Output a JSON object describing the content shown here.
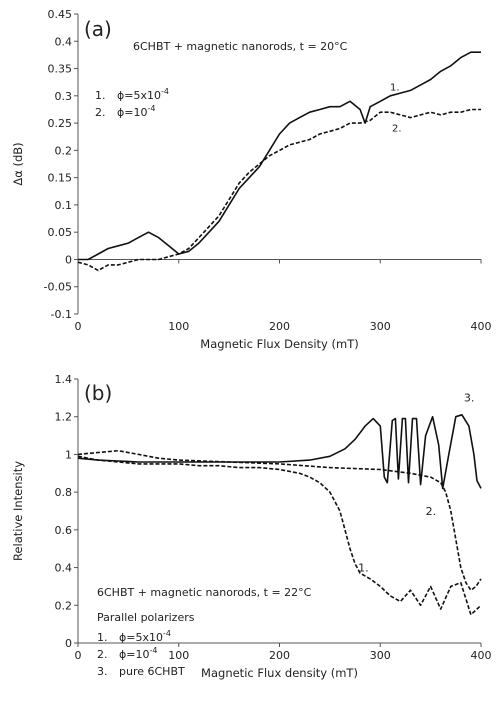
{
  "chart_data": [
    {
      "type": "line",
      "panel_label": "(a)",
      "xlabel": "Magnetic Flux Density (mT)",
      "ylabel": "Δα (dB)",
      "xlim": [
        0,
        400
      ],
      "ylim": [
        -0.1,
        0.45
      ],
      "xticks": [
        0,
        100,
        200,
        300,
        400
      ],
      "yticks": [
        -0.1,
        -0.05,
        0,
        0.05,
        0.1,
        0.15,
        0.2,
        0.25,
        0.3,
        0.35,
        0.4,
        0.45
      ],
      "ytick_labels": [
        "-0.1",
        "-0.05",
        "0",
        "0.05",
        "0.1",
        "0.15",
        "0.2",
        "0.25",
        "0.3",
        "0.35",
        "0.4",
        "0.45"
      ],
      "grid": false,
      "annotation": "6CHBT + magnetic nanorods, t = 20°C",
      "legend": {
        "numbers": [
          "1.",
          "2."
        ],
        "prefix": "ϕ=",
        "items": [
          "5x10",
          "10"
        ],
        "exponent": "-4"
      },
      "series": [
        {
          "label": "1.",
          "style": "solid",
          "x": [
            0,
            10,
            20,
            30,
            40,
            50,
            60,
            70,
            80,
            90,
            100,
            110,
            120,
            130,
            140,
            150,
            160,
            170,
            180,
            190,
            200,
            210,
            220,
            230,
            240,
            250,
            260,
            270,
            280,
            285,
            290,
            300,
            310,
            320,
            330,
            340,
            350,
            360,
            370,
            380,
            390,
            400
          ],
          "y": [
            0,
            0.0,
            0.01,
            0.02,
            0.025,
            0.03,
            0.04,
            0.05,
            0.04,
            0.025,
            0.01,
            0.015,
            0.03,
            0.05,
            0.07,
            0.1,
            0.13,
            0.15,
            0.17,
            0.2,
            0.23,
            0.25,
            0.26,
            0.27,
            0.275,
            0.28,
            0.28,
            0.29,
            0.275,
            0.25,
            0.28,
            0.29,
            0.3,
            0.305,
            0.31,
            0.32,
            0.33,
            0.345,
            0.355,
            0.37,
            0.38,
            0.38
          ]
        },
        {
          "label": "2.",
          "style": "dashed",
          "x": [
            0,
            10,
            20,
            30,
            40,
            50,
            60,
            70,
            80,
            90,
            100,
            110,
            120,
            130,
            140,
            150,
            160,
            170,
            180,
            190,
            200,
            210,
            220,
            230,
            240,
            250,
            260,
            270,
            280,
            290,
            300,
            310,
            320,
            330,
            340,
            350,
            360,
            370,
            380,
            390,
            400
          ],
          "y": [
            -0.005,
            -0.01,
            -0.02,
            -0.01,
            -0.01,
            -0.005,
            0.0,
            0.0,
            0.0,
            0.005,
            0.01,
            0.02,
            0.04,
            0.06,
            0.08,
            0.11,
            0.14,
            0.16,
            0.175,
            0.19,
            0.2,
            0.21,
            0.215,
            0.22,
            0.23,
            0.235,
            0.24,
            0.25,
            0.25,
            0.255,
            0.27,
            0.27,
            0.265,
            0.26,
            0.265,
            0.27,
            0.265,
            0.27,
            0.27,
            0.275,
            0.275
          ]
        }
      ]
    },
    {
      "type": "line",
      "panel_label": "(b)",
      "xlabel": "Magnetic Flux density (mT)",
      "ylabel": "Relative Intensity",
      "xlim": [
        0,
        400
      ],
      "ylim": [
        0,
        1.4
      ],
      "xticks": [
        0,
        100,
        200,
        300,
        400
      ],
      "yticks": [
        0,
        0.2,
        0.4,
        0.6,
        0.8,
        1.0,
        1.2,
        1.4
      ],
      "ytick_labels": [
        "0",
        "0.2",
        "0.4",
        "0.6",
        "0.8",
        "1",
        "1.2",
        "1.4"
      ],
      "grid": false,
      "annotation": "6CHBT + magnetic nanorods, t = 22°C",
      "legend_title": "Parallel polarizers",
      "legend": {
        "numbers": [
          "1.",
          "2.",
          "3."
        ],
        "prefix": "ϕ=",
        "items": [
          "5x10",
          "10"
        ],
        "exponent": "-4",
        "third": "pure 6CHBT"
      },
      "series": [
        {
          "label": "1.",
          "style": "dashed",
          "x": [
            0,
            20,
            40,
            60,
            80,
            100,
            120,
            140,
            160,
            180,
            200,
            210,
            220,
            230,
            240,
            250,
            260,
            265,
            270,
            275,
            280,
            290,
            300,
            310,
            320,
            330,
            340,
            350,
            360,
            370,
            380,
            390,
            400
          ],
          "y": [
            0.99,
            0.97,
            0.96,
            0.95,
            0.95,
            0.95,
            0.94,
            0.94,
            0.93,
            0.93,
            0.92,
            0.91,
            0.9,
            0.88,
            0.85,
            0.8,
            0.7,
            0.6,
            0.5,
            0.42,
            0.37,
            0.34,
            0.3,
            0.25,
            0.22,
            0.28,
            0.2,
            0.3,
            0.18,
            0.3,
            0.32,
            0.15,
            0.2
          ]
        },
        {
          "label": "2.",
          "style": "dashed",
          "x": [
            0,
            20,
            40,
            60,
            80,
            100,
            150,
            200,
            250,
            300,
            330,
            350,
            360,
            365,
            370,
            375,
            380,
            385,
            390,
            395,
            400
          ],
          "y": [
            1.0,
            1.01,
            1.02,
            1.0,
            0.98,
            0.97,
            0.96,
            0.95,
            0.93,
            0.92,
            0.9,
            0.88,
            0.85,
            0.8,
            0.7,
            0.55,
            0.4,
            0.32,
            0.28,
            0.3,
            0.34
          ]
        },
        {
          "label": "3.",
          "style": "solid",
          "x": [
            0,
            20,
            40,
            60,
            80,
            100,
            150,
            200,
            230,
            250,
            265,
            275,
            285,
            293,
            300,
            304,
            307,
            312,
            315,
            318,
            322,
            325,
            328,
            332,
            336,
            340,
            345,
            352,
            358,
            362,
            368,
            375,
            381,
            388,
            393,
            396,
            400
          ],
          "y": [
            0.98,
            0.97,
            0.965,
            0.96,
            0.96,
            0.96,
            0.96,
            0.96,
            0.97,
            0.99,
            1.03,
            1.08,
            1.15,
            1.19,
            1.15,
            0.88,
            0.85,
            1.18,
            1.19,
            0.87,
            1.19,
            1.19,
            0.85,
            1.19,
            1.19,
            0.84,
            1.1,
            1.2,
            1.05,
            0.82,
            1.0,
            1.2,
            1.21,
            1.15,
            1.0,
            0.86,
            0.82
          ]
        }
      ]
    }
  ]
}
